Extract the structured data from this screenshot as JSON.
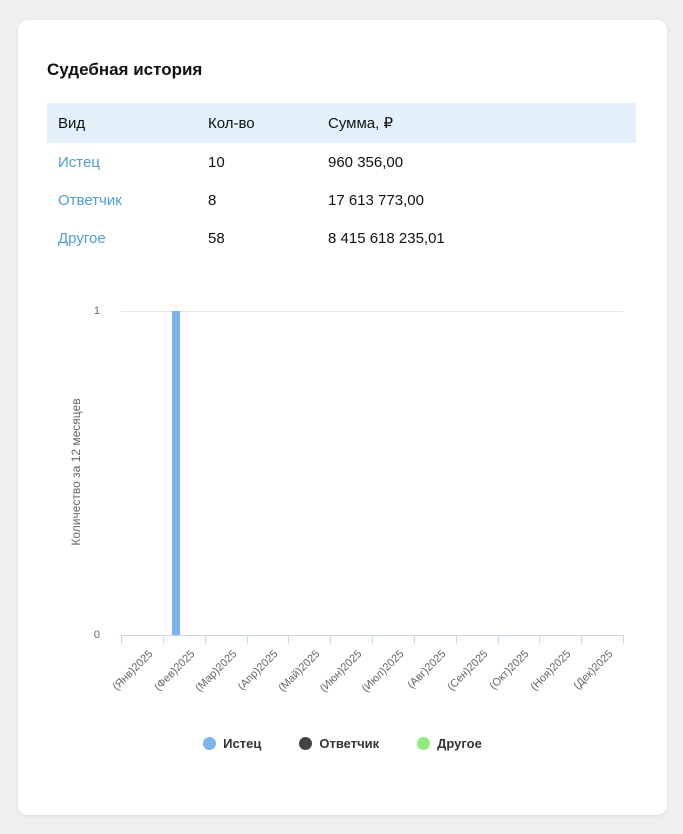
{
  "card": {
    "title": "Судебная история"
  },
  "table": {
    "columns": [
      "Вид",
      "Кол-во",
      "Сумма, ₽"
    ],
    "rows": [
      {
        "type": "Истец",
        "count": "10",
        "sum": "960 356,00"
      },
      {
        "type": "Ответчик",
        "count": "8",
        "sum": "17 613 773,00"
      },
      {
        "type": "Другое",
        "count": "58",
        "sum": "8 415 618 235,01"
      }
    ]
  },
  "chart_data": {
    "type": "bar",
    "title": "",
    "xlabel": "",
    "ylabel": "Количество за 12 месяцев",
    "ylim": [
      0,
      1
    ],
    "yticks": [
      0,
      1
    ],
    "grid": true,
    "legend_position": "bottom",
    "categories": [
      "(Янв)2025",
      "(Фев)2025",
      "(Мар)2025",
      "(Апр)2025",
      "(Май)2025",
      "(Июн)2025",
      "(Июл)2025",
      "(Авг)2025",
      "(Сен)2025",
      "(Окт)2025",
      "(Ноя)2025",
      "(Дек)2025"
    ],
    "series": [
      {
        "name": "Истец",
        "color": "#7cb5ec",
        "values": [
          0,
          1,
          0,
          0,
          0,
          0,
          0,
          0,
          0,
          0,
          0,
          0
        ]
      },
      {
        "name": "Ответчик",
        "color": "#434348",
        "values": [
          0,
          0,
          0,
          0,
          0,
          0,
          0,
          0,
          0,
          0,
          0,
          0
        ]
      },
      {
        "name": "Другое",
        "color": "#90ed7d",
        "values": [
          0,
          0,
          0,
          0,
          0,
          0,
          0,
          0,
          0,
          0,
          0,
          0
        ]
      }
    ]
  },
  "colors": {
    "link": "#4c9fd7",
    "table_header_bg": "#e4f1fa",
    "axis_line": "#ccd6eb",
    "gridline": "#e6e6e6",
    "axis_text": "#666666",
    "page_bg": "#efefef",
    "card_bg": "#ffffff"
  }
}
